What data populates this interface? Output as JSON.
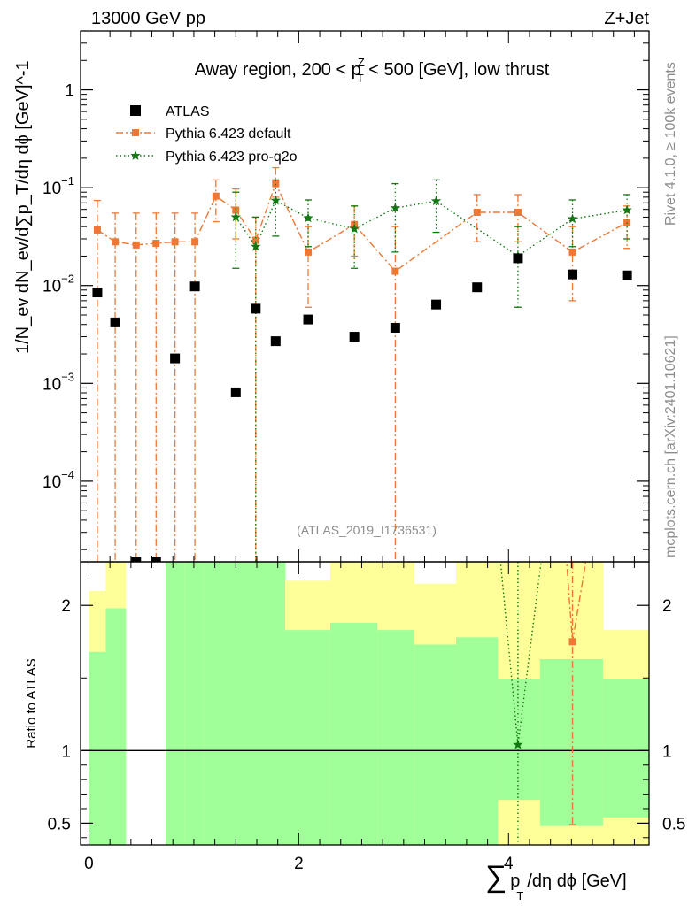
{
  "header": {
    "energy": "13000 GeV pp",
    "process": "Z+Jet"
  },
  "side": {
    "rivet": "Rivet 4.1.0, ≥ 100k events",
    "mcplots": "mcplots.cern.ch [arXiv:2401.10621]"
  },
  "analysis_id": "(ATLAS_2019_I1736531)",
  "colors": {
    "atlas": "#000000",
    "default": "#ee7733",
    "proq2o": "#117711",
    "band_inner": "#a0ff99",
    "band_outer": "#ffff99"
  },
  "chart_data": [
    {
      "type": "scatter",
      "title": "Away region, 200 < p_T^Z < 500 [GeV], low thrust",
      "title_parts": {
        "pre": "Away region, 200 < p",
        "sup": "Z",
        "sub": "T",
        "post": " < 500 [GeV], low thrust"
      },
      "ylabel": "1/N_ev dN_ev/d∑p_T/dη dϕ [GeV]^-1",
      "yscale": "log",
      "ylim": [
        1.5e-05,
        4
      ],
      "xlim": [
        -0.08,
        5.34
      ],
      "yticks": [
        {
          "value": 1,
          "base": "1",
          "exp": ""
        },
        {
          "value": 0.1,
          "base": "10",
          "exp": "−1"
        },
        {
          "value": 0.01,
          "base": "10",
          "exp": "−2"
        },
        {
          "value": 0.001,
          "base": "10",
          "exp": "−3"
        },
        {
          "value": 0.0001,
          "base": "10",
          "exp": "−4"
        }
      ],
      "legend": [
        "ATLAS",
        "Pythia 6.423 default",
        "Pythia 6.423 pro-q2o"
      ],
      "series": [
        {
          "name": "ATLAS",
          "marker": "square",
          "x": [
            0.08,
            0.25,
            0.45,
            0.64,
            0.82,
            1.01,
            1.4,
            1.59,
            1.78,
            2.09,
            2.53,
            2.92,
            3.31,
            3.7,
            4.09,
            4.61,
            5.13
          ],
          "y": [
            0.0085,
            0.0042,
            1.5e-05,
            1.5e-05,
            0.0018,
            0.0098,
            0.00081,
            0.0058,
            0.0027,
            0.0045,
            0.003,
            0.0037,
            0.0064,
            0.0096,
            0.019,
            0.013,
            0.0127
          ]
        },
        {
          "name": "Pythia 6.423 default",
          "marker": "square-small",
          "line": "dashdot",
          "x": [
            0.08,
            0.25,
            0.45,
            0.64,
            0.82,
            1.01,
            1.21,
            1.4,
            1.59,
            1.78,
            2.09,
            2.53,
            2.92,
            3.7,
            4.09,
            4.61,
            5.13
          ],
          "y": [
            0.037,
            0.028,
            0.026,
            0.027,
            0.028,
            0.028,
            0.082,
            0.059,
            0.029,
            0.11,
            0.022,
            0.042,
            0.014,
            0.056,
            0.056,
            0.022,
            0.044
          ],
          "err_hi": [
            0.074,
            0.055,
            0.055,
            0.055,
            0.055,
            0.055,
            0.12,
            0.097,
            0.05,
            0.16,
            0.04,
            0.065,
            0.04,
            0.085,
            0.085,
            0.04,
            0.065
          ],
          "err_lo": [
            1e-06,
            1e-06,
            1e-06,
            1e-06,
            1e-06,
            1e-06,
            0.045,
            0.03,
            1e-06,
            0.08,
            0.006,
            0.02,
            1e-06,
            0.028,
            0.028,
            0.007,
            0.024
          ]
        },
        {
          "name": "Pythia 6.423 pro-q2o",
          "marker": "star",
          "line": "dotted",
          "x": [
            1.4,
            1.59,
            1.78,
            2.09,
            2.53,
            2.92,
            3.31,
            4.09,
            4.61,
            5.13
          ],
          "y": [
            0.05,
            0.025,
            0.074,
            0.049,
            0.038,
            0.062,
            0.073,
            0.02,
            0.048,
            0.059
          ],
          "err_hi": [
            0.09,
            0.05,
            0.12,
            0.075,
            0.065,
            0.11,
            0.12,
            0.04,
            0.075,
            0.085
          ],
          "err_lo": [
            0.015,
            1e-06,
            0.032,
            0.025,
            0.015,
            0.022,
            0.035,
            0.006,
            0.025,
            0.03
          ]
        }
      ]
    },
    {
      "type": "line",
      "ylabel": "Ratio to ATLAS",
      "xlabel": "∑p_T/dη dϕ [GeV]",
      "xlabel_parts": {
        "sum": "∑",
        "p": "p",
        "sub": "T",
        "rest": "/dη dϕ [GeV]"
      },
      "ylim": [
        0.35,
        2.3
      ],
      "xlim": [
        -0.08,
        5.34
      ],
      "xticks": [
        0,
        2,
        4
      ],
      "yticks": [
        0.5,
        1,
        2
      ],
      "band_edges": [
        0,
        0.16,
        0.35,
        0.54,
        0.73,
        0.91,
        1.1,
        1.3,
        1.49,
        1.68,
        1.87,
        2.3,
        2.75,
        3.1,
        3.5,
        3.9,
        4.3,
        4.9,
        5.36
      ],
      "band_inner": [
        [
          0.35,
          1.68
        ],
        [
          0.35,
          1.98
        ],
        null,
        null,
        [
          0.35,
          2.3
        ],
        [
          0.35,
          2.3
        ],
        [
          0.35,
          2.3
        ],
        [
          0.35,
          2.3
        ],
        [
          0.35,
          2.3
        ],
        [
          0.35,
          2.3
        ],
        [
          0.35,
          1.83
        ],
        [
          0.35,
          1.88
        ],
        [
          0.35,
          1.83
        ],
        [
          0.35,
          1.73
        ],
        [
          0.35,
          1.78
        ],
        [
          0.66,
          1.49
        ],
        [
          0.48,
          1.63
        ],
        [
          0.54,
          1.49
        ]
      ],
      "band_outer": [
        [
          0.35,
          2.1
        ],
        [
          0.35,
          2.3
        ],
        null,
        null,
        [
          0.35,
          2.3
        ],
        [
          0.35,
          2.3
        ],
        [
          0.35,
          2.3
        ],
        [
          0.35,
          2.3
        ],
        [
          0.35,
          2.3
        ],
        [
          0.35,
          2.3
        ],
        [
          0.35,
          2.17
        ],
        [
          0.35,
          2.3
        ],
        [
          0.35,
          2.3
        ],
        [
          0.35,
          2.15
        ],
        [
          0.35,
          2.3
        ],
        [
          0.35,
          2.3
        ],
        [
          0.35,
          2.3
        ],
        [
          0.35,
          1.83
        ]
      ],
      "series": [
        {
          "name": "Pythia 6.423 default",
          "x": [
            4.61
          ],
          "y": [
            1.75
          ],
          "err_lo": [
            0.49
          ],
          "err_hi": [
            2.4
          ]
        },
        {
          "name": "Pythia 6.423 pro-q2o",
          "x": [
            4.09
          ],
          "y": [
            1.04
          ],
          "err_lo": [
            0.35
          ],
          "err_hi": [
            2.4
          ]
        }
      ]
    }
  ]
}
